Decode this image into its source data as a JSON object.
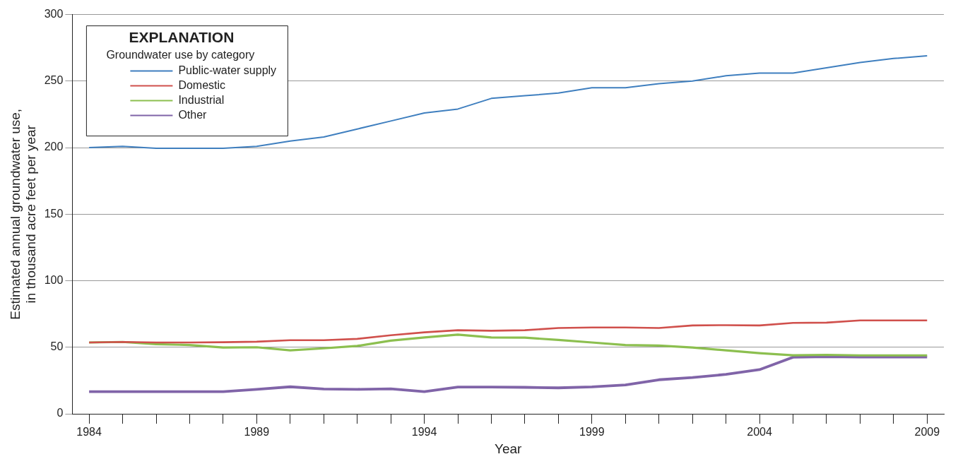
{
  "chart_data": {
    "type": "line",
    "xlabel": "Year",
    "ylabel": "Estimated annual groundwater use,\nin thousand acre feet per year",
    "legend_title": "EXPLANATION\nGroundwater use by category",
    "legend": "top left",
    "grid": "y",
    "marker": "none",
    "line_style": "solid",
    "x": [
      1984,
      1985,
      1986,
      1987,
      1988,
      1989,
      1990,
      1991,
      1992,
      1993,
      1994,
      1995,
      1996,
      1997,
      1998,
      1999,
      2000,
      2001,
      2002,
      2003,
      2004,
      2005,
      2006,
      2007,
      2008,
      2009
    ],
    "xlim": [
      1983.5,
      2009.5
    ],
    "xticks": [
      1984,
      {
        "value": 1985,
        "label": null
      },
      {
        "value": 1986,
        "label": null
      },
      {
        "value": 1987,
        "label": null
      },
      {
        "value": 1988,
        "label": null
      },
      1989,
      {
        "value": 1990,
        "label": null
      },
      {
        "value": 1991,
        "label": null
      },
      {
        "value": 1992,
        "label": null
      },
      {
        "value": 1993,
        "label": null
      },
      1994,
      {
        "value": 1995,
        "label": null
      },
      {
        "value": 1996,
        "label": null
      },
      {
        "value": 1997,
        "label": null
      },
      {
        "value": 1998,
        "label": null
      },
      1999,
      {
        "value": 2000,
        "label": null
      },
      {
        "value": 2001,
        "label": null
      },
      {
        "value": 2002,
        "label": null
      },
      {
        "value": 2003,
        "label": null
      },
      2004,
      {
        "value": 2005,
        "label": null
      },
      {
        "value": 2006,
        "label": null
      },
      {
        "value": 2007,
        "label": null
      },
      {
        "value": 2008,
        "label": null
      },
      2009
    ],
    "ylim": [
      0,
      300
    ],
    "yticks": [
      0,
      50,
      100,
      150,
      200,
      250,
      300
    ],
    "series": [
      {
        "name": "Public-water supply",
        "color": "#3f7fbf",
        "values": [
          200,
          201,
          199.5,
          199.5,
          199.5,
          201,
          205,
          208,
          214,
          220,
          226,
          229,
          237,
          239,
          241,
          245,
          245,
          248,
          250,
          254,
          256,
          256,
          260,
          264,
          267,
          269
        ]
      },
      {
        "name": "Domestic",
        "color": "#d0504c",
        "values": [
          53.6,
          54,
          53.6,
          53.6,
          53.8,
          54.2,
          55.3,
          55.3,
          56.3,
          59,
          61.2,
          62.8,
          62.4,
          62.8,
          64.5,
          64.9,
          64.9,
          64.5,
          66.4,
          66.6,
          66.4,
          68.3,
          68.5,
          70.2,
          70.2,
          70.2
        ]
      },
      {
        "name": "Industrial",
        "color": "#8cbf4f",
        "values": [
          53.6,
          54,
          52.3,
          51.7,
          49.8,
          50,
          47.7,
          49.2,
          51,
          55,
          57.4,
          59.5,
          57.4,
          57.2,
          55.5,
          53.6,
          51.7,
          51.3,
          49.8,
          47.7,
          45.6,
          44,
          44.3,
          43.9,
          43.9,
          43.9
        ]
      },
      {
        "name": "Other",
        "color": "#8064a8",
        "values": [
          16.7,
          16.7,
          16.7,
          16.7,
          16.7,
          18.4,
          20.3,
          18.6,
          18.4,
          18.8,
          16.7,
          20.1,
          20.1,
          19.9,
          19.5,
          20.2,
          21.7,
          25.6,
          27.3,
          29.6,
          33.2,
          42.5,
          42.9,
          42.7,
          42.7,
          42.7
        ]
      }
    ]
  }
}
